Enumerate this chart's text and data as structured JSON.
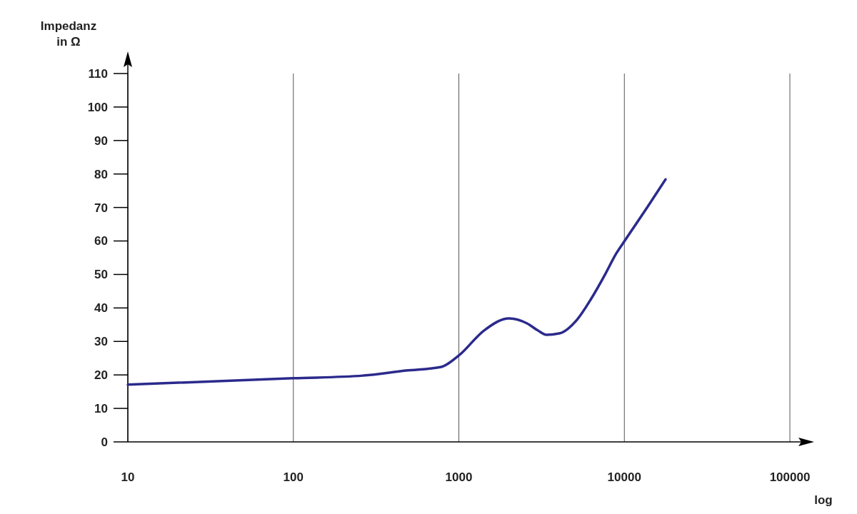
{
  "chart_data": {
    "type": "line",
    "ylabel": "Impedanz\nin Ω",
    "xlabel": "log",
    "log": "x",
    "x": [
      10,
      100,
      263,
      478,
      783,
      1000,
      1422,
      2014,
      2582,
      2998,
      3379,
      4040,
      5176,
      6310,
      7705,
      8940,
      10000,
      13990,
      17740
    ],
    "series": [
      {
        "color": "#2b2a8c",
        "values": [
          17.1,
          19.0,
          19.8,
          21.3,
          22.4,
          25.8,
          33.3,
          36.9,
          35.4,
          33.3,
          32.0,
          32.4,
          36.5,
          42.8,
          50.3,
          56.3,
          59.9,
          70.6,
          78.4
        ]
      }
    ],
    "xlim": [
      10,
      100000
    ],
    "xticks": [
      10,
      100,
      1000,
      10000,
      100000
    ],
    "ylim": [
      0,
      110
    ],
    "yticks": [
      0,
      10,
      20,
      30,
      40,
      50,
      60,
      70,
      80,
      90,
      100,
      110
    ],
    "grid": "x",
    "line_style": "solid",
    "marker": "none"
  }
}
